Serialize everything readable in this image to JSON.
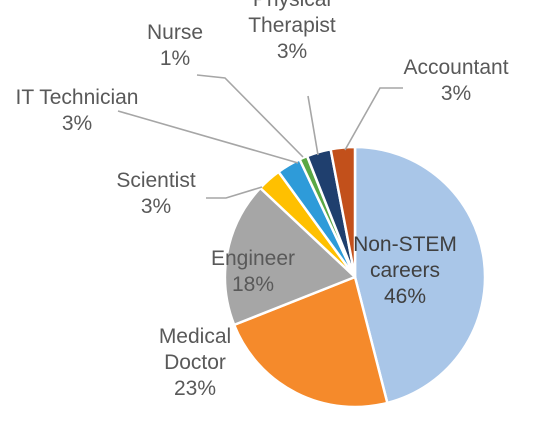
{
  "chart_data": {
    "type": "pie",
    "title": "",
    "slices": [
      {
        "label": [
          "Non-STEM",
          "careers"
        ],
        "value_label": "46%",
        "value": 46,
        "color": "#a9c6e8",
        "label_color": "#404040"
      },
      {
        "label": [
          "Medical",
          "Doctor"
        ],
        "value_label": "23%",
        "value": 23,
        "color": "#f58a2b",
        "label_color": "#595959"
      },
      {
        "label": [
          "Engineer"
        ],
        "value_label": "18%",
        "value": 18,
        "color": "#a6a6a6",
        "label_color": "#595959"
      },
      {
        "label": [
          "Scientist"
        ],
        "value_label": "3%",
        "value": 3,
        "color": "#ffc000",
        "label_color": "#595959"
      },
      {
        "label": [
          "IT Technician"
        ],
        "value_label": "3%",
        "value": 3,
        "color": "#2e9bd9",
        "label_color": "#595959"
      },
      {
        "label": [
          "Nurse"
        ],
        "value_label": "1%",
        "value": 1,
        "color": "#5aa844",
        "label_color": "#595959"
      },
      {
        "label": [
          "Physical",
          "Therapist"
        ],
        "value_label": "3%",
        "value": 3,
        "color": "#1f3f6e",
        "label_color": "#595959"
      },
      {
        "label": [
          "Accountant"
        ],
        "value_label": "3%",
        "value": 3,
        "color": "#c2501b",
        "label_color": "#595959"
      }
    ]
  }
}
